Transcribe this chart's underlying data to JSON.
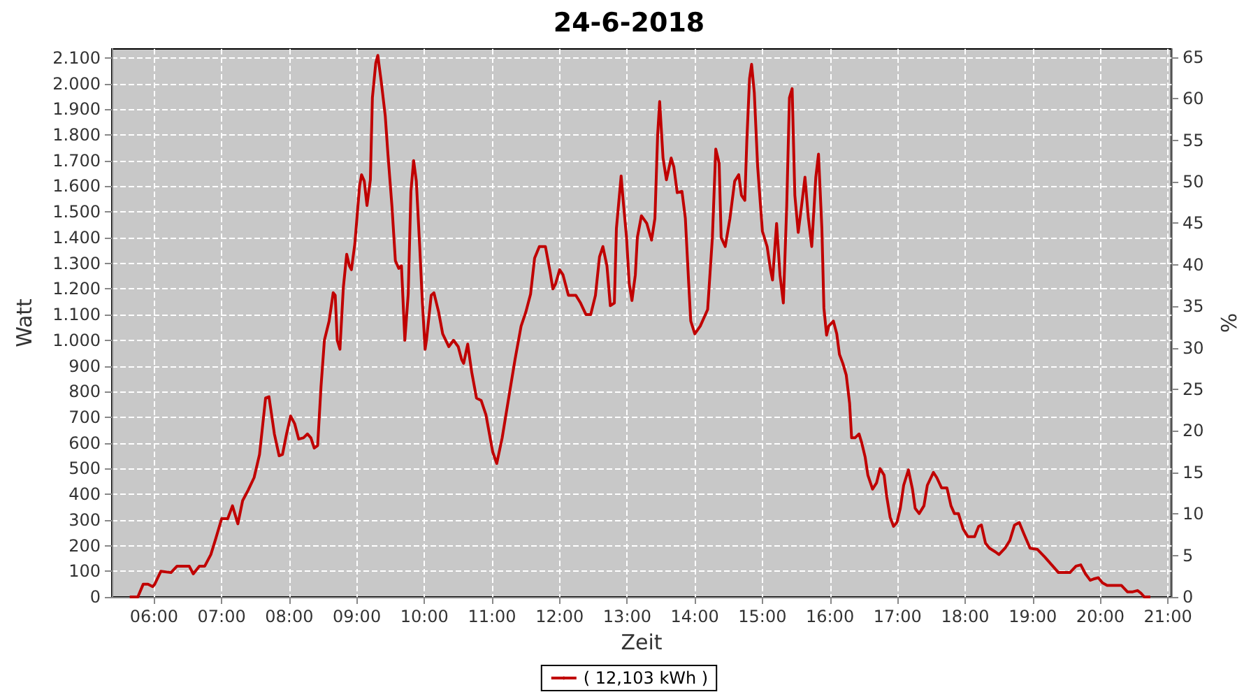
{
  "chart_data": {
    "type": "line",
    "title": "24-6-2018",
    "xlabel": "Zeit",
    "ylabel": "Watt",
    "y2label": "%",
    "xlim": [
      5.375,
      21.05
    ],
    "xticks": [
      {
        "value": 6,
        "label": "06:00"
      },
      {
        "value": 7,
        "label": "07:00"
      },
      {
        "value": 8,
        "label": "08:00"
      },
      {
        "value": 9,
        "label": "09:00"
      },
      {
        "value": 10,
        "label": "10:00"
      },
      {
        "value": 11,
        "label": "11:00"
      },
      {
        "value": 12,
        "label": "12:00"
      },
      {
        "value": 13,
        "label": "13:00"
      },
      {
        "value": 14,
        "label": "14:00"
      },
      {
        "value": 15,
        "label": "15:00"
      },
      {
        "value": 16,
        "label": "16:00"
      },
      {
        "value": 17,
        "label": "17:00"
      },
      {
        "value": 18,
        "label": "18:00"
      },
      {
        "value": 19,
        "label": "19:00"
      },
      {
        "value": 20,
        "label": "20:00"
      },
      {
        "value": 21,
        "label": "21:00"
      }
    ],
    "ylim": [
      0,
      2135
    ],
    "yticks": [
      0,
      100,
      200,
      300,
      400,
      500,
      600,
      700,
      800,
      900,
      {
        "value": 1000,
        "label": "1.000"
      },
      {
        "value": 1100,
        "label": "1.100"
      },
      {
        "value": 1200,
        "label": "1.200"
      },
      {
        "value": 1300,
        "label": "1.300"
      },
      {
        "value": 1400,
        "label": "1.400"
      },
      {
        "value": 1500,
        "label": "1.500"
      },
      {
        "value": 1600,
        "label": "1.600"
      },
      {
        "value": 1700,
        "label": "1.700"
      },
      {
        "value": 1800,
        "label": "1.800"
      },
      {
        "value": 1900,
        "label": "1.900"
      },
      {
        "value": 2000,
        "label": "2.000"
      },
      {
        "value": 2100,
        "label": "2.100"
      }
    ],
    "y2lim": [
      0,
      66
    ],
    "y2ticks": [
      0,
      5,
      10,
      15,
      20,
      25,
      30,
      35,
      40,
      45,
      50,
      55,
      60,
      65
    ],
    "grid": true,
    "legend": "bottom",
    "marker": "none",
    "line_style": "solid",
    "series": [
      {
        "name": "( 12,103 kWh )",
        "color": "#c00000",
        "x": [
          5.64,
          5.76,
          5.84,
          5.91,
          5.98,
          6.01,
          6.1,
          6.25,
          6.34,
          6.52,
          6.58,
          6.67,
          6.75,
          6.84,
          6.91,
          7.0,
          7.09,
          7.16,
          7.24,
          7.31,
          7.39,
          7.48,
          7.56,
          7.65,
          7.7,
          7.78,
          7.85,
          7.9,
          7.96,
          8.02,
          8.08,
          8.14,
          8.21,
          8.27,
          8.32,
          8.37,
          8.42,
          8.47,
          8.52,
          8.59,
          8.65,
          8.68,
          8.71,
          8.75,
          8.8,
          8.85,
          8.89,
          8.92,
          8.97,
          9.04,
          9.07,
          9.11,
          9.15,
          9.2,
          9.23,
          9.28,
          9.31,
          9.36,
          9.42,
          9.46,
          9.52,
          9.57,
          9.62,
          9.66,
          9.71,
          9.76,
          9.8,
          9.84,
          9.88,
          9.93,
          9.97,
          10.01,
          10.03,
          10.1,
          10.14,
          10.21,
          10.27,
          10.36,
          10.43,
          10.5,
          10.55,
          10.58,
          10.64,
          10.7,
          10.77,
          10.84,
          10.91,
          11.01,
          11.07,
          11.15,
          11.24,
          11.34,
          11.43,
          11.5,
          11.57,
          11.63,
          11.7,
          11.79,
          11.86,
          11.9,
          11.94,
          12.0,
          12.05,
          12.13,
          12.24,
          12.31,
          12.39,
          12.46,
          12.53,
          12.59,
          12.64,
          12.7,
          12.75,
          12.81,
          12.84,
          12.91,
          12.94,
          12.99,
          13.03,
          13.07,
          13.12,
          13.15,
          13.21,
          13.29,
          13.36,
          13.41,
          13.45,
          13.48,
          13.53,
          13.58,
          13.65,
          13.69,
          13.74,
          13.81,
          13.86,
          13.91,
          13.94,
          14.0,
          14.08,
          14.19,
          14.26,
          14.31,
          14.36,
          14.39,
          14.45,
          14.52,
          14.59,
          14.65,
          14.69,
          14.74,
          14.77,
          14.81,
          14.84,
          14.88,
          14.93,
          15.0,
          15.07,
          15.12,
          15.15,
          15.21,
          15.26,
          15.31,
          15.36,
          15.4,
          15.44,
          15.48,
          15.53,
          15.58,
          15.63,
          15.68,
          15.73,
          15.79,
          15.83,
          15.88,
          15.91,
          15.95,
          15.98,
          16.05,
          16.1,
          16.14,
          16.19,
          16.24,
          16.29,
          16.32,
          16.37,
          16.43,
          16.47,
          16.52,
          16.56,
          16.63,
          16.69,
          16.74,
          16.8,
          16.84,
          16.89,
          16.94,
          16.99,
          17.04,
          17.09,
          17.16,
          17.22,
          17.26,
          17.32,
          17.39,
          17.44,
          17.53,
          17.58,
          17.65,
          17.73,
          17.79,
          17.84,
          17.9,
          17.97,
          18.04,
          18.14,
          18.2,
          18.24,
          18.3,
          18.36,
          18.45,
          18.5,
          18.59,
          18.66,
          18.73,
          18.8,
          18.87,
          18.96,
          19.07,
          19.18,
          19.28,
          19.38,
          19.55,
          19.64,
          19.71,
          19.78,
          19.85,
          19.9,
          19.97,
          20.03,
          20.1,
          20.31,
          20.4,
          20.48,
          20.55,
          20.6,
          20.65,
          20.74
        ],
        "values": [
          0,
          0,
          50,
          50,
          40,
          50,
          100,
          95,
          120,
          120,
          90,
          120,
          120,
          165,
          225,
          305,
          305,
          355,
          285,
          375,
          415,
          465,
          555,
          775,
          780,
          635,
          550,
          555,
          635,
          705,
          675,
          615,
          620,
          635,
          620,
          580,
          590,
          820,
          1000,
          1075,
          1185,
          1175,
          1000,
          965,
          1205,
          1335,
          1290,
          1275,
          1375,
          1600,
          1645,
          1620,
          1525,
          1625,
          1945,
          2080,
          2110,
          2010,
          1875,
          1725,
          1520,
          1310,
          1280,
          1290,
          1000,
          1180,
          1580,
          1700,
          1620,
          1365,
          1145,
          965,
          1000,
          1175,
          1185,
          1110,
          1025,
          975,
          1000,
          975,
          925,
          910,
          985,
          875,
          775,
          765,
          710,
          565,
          520,
          620,
          765,
          925,
          1055,
          1110,
          1180,
          1320,
          1365,
          1365,
          1265,
          1200,
          1220,
          1275,
          1255,
          1175,
          1175,
          1145,
          1100,
          1100,
          1175,
          1325,
          1365,
          1290,
          1135,
          1145,
          1435,
          1640,
          1545,
          1400,
          1220,
          1155,
          1255,
          1400,
          1485,
          1455,
          1390,
          1475,
          1800,
          1930,
          1710,
          1625,
          1710,
          1675,
          1575,
          1580,
          1475,
          1220,
          1075,
          1025,
          1055,
          1120,
          1400,
          1745,
          1690,
          1400,
          1365,
          1475,
          1620,
          1645,
          1565,
          1545,
          1780,
          2020,
          2075,
          1965,
          1675,
          1425,
          1365,
          1275,
          1235,
          1455,
          1255,
          1145,
          1525,
          1945,
          1980,
          1565,
          1420,
          1525,
          1635,
          1475,
          1365,
          1635,
          1725,
          1435,
          1125,
          1020,
          1055,
          1075,
          1025,
          945,
          910,
          865,
          755,
          620,
          620,
          635,
          600,
          545,
          475,
          420,
          445,
          500,
          475,
          390,
          310,
          275,
          290,
          345,
          435,
          495,
          420,
          345,
          325,
          355,
          435,
          485,
          465,
          425,
          425,
          355,
          325,
          325,
          265,
          235,
          235,
          275,
          280,
          210,
          190,
          175,
          165,
          190,
          220,
          280,
          290,
          245,
          190,
          185,
          155,
          125,
          95,
          95,
          120,
          125,
          90,
          65,
          70,
          75,
          55,
          45,
          45,
          20,
          20,
          25,
          15,
          0,
          0
        ]
      }
    ]
  }
}
